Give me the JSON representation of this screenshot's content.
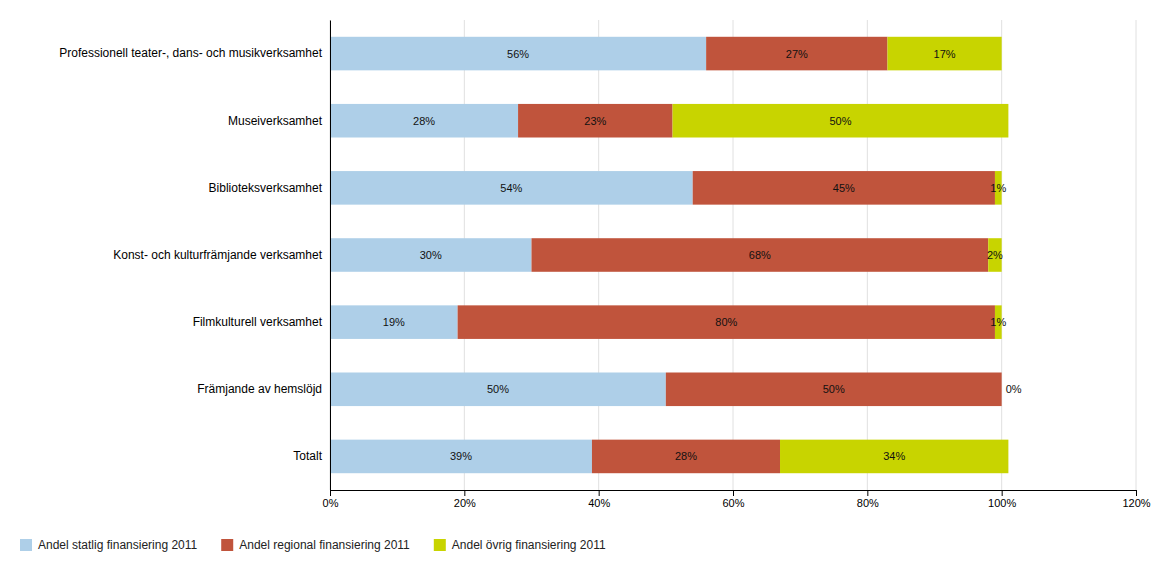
{
  "chart_data": {
    "type": "bar",
    "orientation": "horizontal",
    "stacked": true,
    "categories": [
      "Professionell teater-, dans- och musikverksamhet",
      "Museiverksamhet",
      "Biblioteksverksamhet",
      "Konst- och kulturfrämjande verksamhet",
      "Filmkulturell verksamhet",
      "Främjande av hemslöjd",
      "Totalt"
    ],
    "series": [
      {
        "name": "Andel statlig finansiering 2011",
        "color": "#aecfe8",
        "values": [
          56,
          28,
          54,
          30,
          19,
          50,
          39
        ],
        "value_labels": [
          "56%",
          "28%",
          "54%",
          "30%",
          "19%",
          "50%",
          "39%"
        ]
      },
      {
        "name": "Andel regional finansiering 2011",
        "color": "#c0543c",
        "values": [
          27,
          23,
          45,
          68,
          80,
          50,
          28
        ],
        "value_labels": [
          "27%",
          "23%",
          "45%",
          "68%",
          "80%",
          "50%",
          "28%"
        ]
      },
      {
        "name": "Andel övrig finansiering 2011",
        "color": "#c8d400",
        "values": [
          17,
          50,
          1,
          2,
          1,
          0,
          34
        ],
        "value_labels": [
          "17%",
          "50%",
          "1%",
          "2%",
          "1%",
          "0%",
          "34%"
        ]
      }
    ],
    "data_labels": true,
    "xlim": [
      0,
      120
    ],
    "xticks": [
      {
        "value": 0,
        "label": "0%"
      },
      {
        "value": 20,
        "label": "20%"
      },
      {
        "value": 40,
        "label": "40%"
      },
      {
        "value": 60,
        "label": "60%"
      },
      {
        "value": 80,
        "label": "80%"
      },
      {
        "value": 100,
        "label": "100%"
      },
      {
        "value": 120,
        "label": "120%"
      }
    ],
    "grid": true,
    "legend": "lower left"
  }
}
